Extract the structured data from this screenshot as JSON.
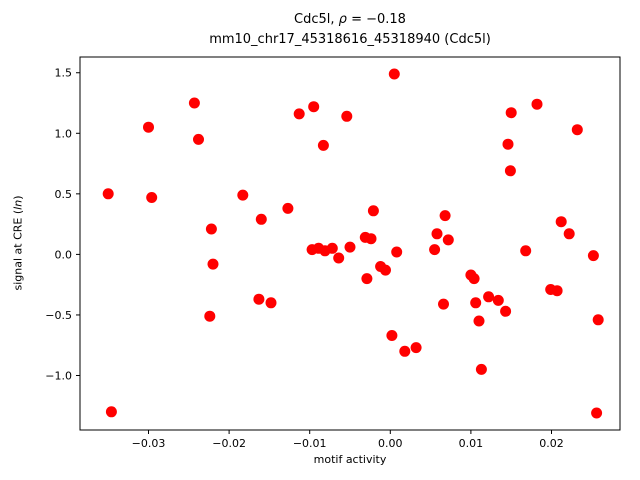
{
  "title": {
    "line1_gene": "Cdc5l, ",
    "line1_rho_symbol": "ρ",
    "line1_rho_value": " = −0.18",
    "line2": "mm10_chr17_45318616_45318940 (Cdc5l)"
  },
  "axes": {
    "xlabel": "motif activity",
    "ylabel_prefix": "signal at CRE (",
    "ylabel_italic": "ln",
    "ylabel_suffix": ")"
  },
  "chart_data": {
    "type": "scatter",
    "title": "Cdc5l, ρ = −0.18 / mm10_chr17_45318616_45318940 (Cdc5l)",
    "xlabel": "motif activity",
    "ylabel": "signal at CRE (ln)",
    "xlim": [
      -0.0385,
      0.0285
    ],
    "ylim": [
      -1.45,
      1.63
    ],
    "grid": false,
    "legend": "none",
    "marker_color": "#ff0000",
    "xticks": [
      {
        "v": -0.03,
        "label": "−0.03"
      },
      {
        "v": -0.02,
        "label": "−0.02"
      },
      {
        "v": -0.01,
        "label": "−0.01"
      },
      {
        "v": 0.0,
        "label": "0.00"
      },
      {
        "v": 0.01,
        "label": "0.01"
      },
      {
        "v": 0.02,
        "label": "0.02"
      }
    ],
    "yticks": [
      {
        "v": -1.0,
        "label": "−1.0"
      },
      {
        "v": -0.5,
        "label": "−0.5"
      },
      {
        "v": 0.0,
        "label": "0.0"
      },
      {
        "v": 0.5,
        "label": "0.5"
      },
      {
        "v": 1.0,
        "label": "1.0"
      },
      {
        "v": 1.5,
        "label": "1.5"
      }
    ],
    "points": [
      [
        -0.035,
        0.5
      ],
      [
        -0.0346,
        -1.3
      ],
      [
        -0.03,
        1.05
      ],
      [
        -0.0296,
        0.47
      ],
      [
        -0.0243,
        1.25
      ],
      [
        -0.0238,
        0.95
      ],
      [
        -0.0222,
        0.21
      ],
      [
        -0.022,
        -0.08
      ],
      [
        -0.0224,
        -0.51
      ],
      [
        -0.0183,
        0.49
      ],
      [
        -0.016,
        0.29
      ],
      [
        -0.0163,
        -0.37
      ],
      [
        -0.0148,
        -0.4
      ],
      [
        -0.0127,
        0.38
      ],
      [
        -0.0113,
        1.16
      ],
      [
        -0.0095,
        1.22
      ],
      [
        -0.0097,
        0.04
      ],
      [
        -0.0089,
        0.05
      ],
      [
        -0.0083,
        0.9
      ],
      [
        -0.0081,
        0.03
      ],
      [
        -0.0072,
        0.05
      ],
      [
        -0.0064,
        -0.03
      ],
      [
        -0.0054,
        1.14
      ],
      [
        -0.005,
        0.06
      ],
      [
        -0.0031,
        0.14
      ],
      [
        -0.0024,
        0.13
      ],
      [
        -0.0021,
        0.36
      ],
      [
        -0.0029,
        -0.2
      ],
      [
        -0.0012,
        -0.1
      ],
      [
        -0.0006,
        -0.13
      ],
      [
        0.0005,
        1.49
      ],
      [
        0.0008,
        0.02
      ],
      [
        0.0002,
        -0.67
      ],
      [
        0.0018,
        -0.8
      ],
      [
        0.0032,
        -0.77
      ],
      [
        0.0058,
        0.17
      ],
      [
        0.0055,
        0.04
      ],
      [
        0.0068,
        0.32
      ],
      [
        0.0072,
        0.12
      ],
      [
        0.0066,
        -0.41
      ],
      [
        0.01,
        -0.17
      ],
      [
        0.0104,
        -0.2
      ],
      [
        0.0106,
        -0.4
      ],
      [
        0.011,
        -0.55
      ],
      [
        0.0113,
        -0.95
      ],
      [
        0.0122,
        -0.35
      ],
      [
        0.0134,
        -0.38
      ],
      [
        0.0143,
        -0.47
      ],
      [
        0.015,
        1.17
      ],
      [
        0.0146,
        0.91
      ],
      [
        0.0149,
        0.69
      ],
      [
        0.0168,
        0.03
      ],
      [
        0.0182,
        1.24
      ],
      [
        0.0199,
        -0.29
      ],
      [
        0.0207,
        -0.3
      ],
      [
        0.0212,
        0.27
      ],
      [
        0.0222,
        0.17
      ],
      [
        0.0232,
        1.03
      ],
      [
        0.0252,
        -0.01
      ],
      [
        0.0258,
        -0.54
      ],
      [
        0.0256,
        -1.31
      ]
    ]
  }
}
